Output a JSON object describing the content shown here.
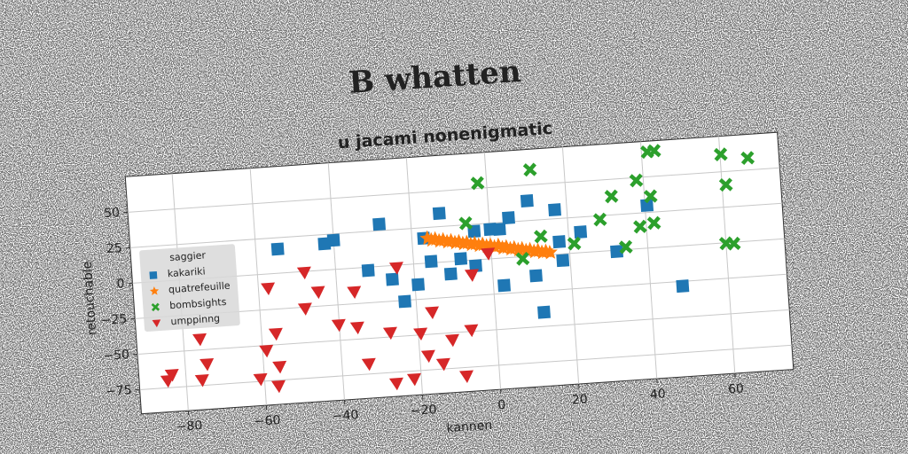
{
  "chart_data": {
    "type": "scatter",
    "suptitle": "B whatten",
    "title": "u jacami nonenigmatic",
    "xlabel": "kannen",
    "ylabel": "retouchable",
    "legend_title": "saggier",
    "legend": "center left",
    "grid": true,
    "xlim": [
      -92,
      75
    ],
    "ylim": [
      -92,
      75
    ],
    "xticks": [
      {
        "value": -80,
        "label": "−80"
      },
      {
        "value": -60,
        "label": "−60"
      },
      {
        "value": -40,
        "label": "−40"
      },
      {
        "value": -20,
        "label": "−20"
      },
      0,
      20,
      40,
      60
    ],
    "yticks": [
      {
        "value": -75,
        "label": "−75"
      },
      {
        "value": -50,
        "label": "−50"
      },
      {
        "value": -25,
        "label": "−25"
      },
      0,
      25,
      50
    ],
    "series": [
      {
        "name": "kakariki",
        "color": "#1f77b4",
        "marker": "square",
        "x": [
          -54.4,
          -40,
          -42.4,
          -28.1,
          -31.7,
          -25.7,
          -22.9,
          -19.2,
          -12.6,
          -17,
          -15.5,
          -10.7,
          -7.9,
          -4.2,
          -4,
          0.1,
          2.5,
          5,
          10,
          16.9,
          17.5,
          18.1,
          23.1,
          11,
          2.7,
          12.4,
          32,
          40.5,
          48.2
        ],
        "y": [
          17,
          20.5,
          18.5,
          29.6,
          -2.3,
          -9.7,
          -25.8,
          -14.6,
          34.3,
          17.6,
          1,
          -8.7,
          1.5,
          -4.2,
          20.1,
          20.7,
          20.3,
          27.9,
          38.9,
          31.3,
          8.7,
          -4.6,
          14.5,
          -14,
          -19.3,
          -40,
          -0.9,
          30,
          -28.3
        ]
      },
      {
        "name": "quatrefeuille",
        "color": "#ff7f0e",
        "marker": "star",
        "x": [
          -16,
          -15,
          -14,
          -13,
          -12,
          -11,
          -10,
          -9,
          -8,
          -7,
          -6,
          -5,
          -4,
          -3,
          -2,
          -1,
          0,
          1,
          2,
          3,
          4,
          5,
          6,
          7,
          8,
          9,
          10,
          11,
          12,
          13,
          14,
          15
        ],
        "y": [
          17.5,
          16,
          16.5,
          15,
          15.5,
          14,
          14.5,
          13,
          13.5,
          12,
          12.5,
          11,
          11.5,
          10,
          10.5,
          9,
          9.5,
          8,
          9,
          7,
          7.5,
          6,
          6.5,
          5,
          5.5,
          4,
          4.5,
          3,
          3.5,
          2,
          2.5,
          1.5
        ]
      },
      {
        "name": "bombsights",
        "color": "#2ca02c",
        "marker": "x",
        "x": [
          -2.3,
          -6,
          11.3,
          12.9,
          21.3,
          7.9,
          28.3,
          31.6,
          34.4,
          38.2,
          38.4,
          41.5,
          43.3,
          41.6,
          42,
          60.2,
          67,
          61,
          60,
          62
        ],
        "y": [
          53.7,
          26.1,
          60.6,
          13.3,
          6.7,
          -1.5,
          22.3,
          38,
          1.8,
          48,
          15.4,
          67.5,
          67.9,
          36.2,
          17.3,
          62.2,
          58.4,
          40.7,
          -0.4,
          -1
        ]
      },
      {
        "name": "umppinng",
        "color": "#d62728",
        "marker": "triangle-down",
        "x": [
          -84.7,
          -83.5,
          -75.9,
          -74.4,
          -75.8,
          -61,
          -56.5,
          -55.9,
          -59,
          -56.3,
          -57.5,
          -48,
          -44.8,
          -48.4,
          -40.1,
          -35.6,
          -35.4,
          -33.1,
          -27.1,
          -24.4,
          -26.4,
          -21.8,
          -19.4,
          -17.8,
          -16.1,
          -14.1,
          -11.4,
          -8.4,
          -6.4,
          -5.3,
          -0.8
        ],
        "y": [
          -70,
          -66,
          -71.2,
          -60.2,
          -42.4,
          -73.3,
          -79,
          -65.5,
          -53.6,
          -42.2,
          -10,
          -0.6,
          -14.9,
          -26,
          -39,
          -16.6,
          -41.7,
          -67.8,
          -47,
          -1.7,
          -82.8,
          -80.6,
          -49,
          -65,
          -34.6,
          -71.4,
          -55,
          -81,
          -49,
          -10.3,
          3.9
        ]
      }
    ]
  }
}
